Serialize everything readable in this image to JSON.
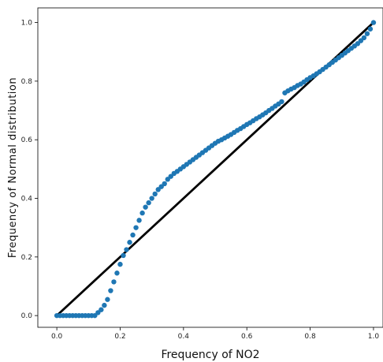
{
  "chart_data": {
    "type": "scatter",
    "title": "",
    "xlabel": "Frequency of NO2",
    "ylabel": "Frequency of Normal distribution",
    "xlim": [
      -0.06,
      1.03
    ],
    "ylim": [
      -0.04,
      1.05
    ],
    "xticks": [
      "0.0",
      "0.2",
      "0.4",
      "0.6",
      "0.8",
      "1.0"
    ],
    "yticks": [
      "0.0",
      "0.2",
      "0.4",
      "0.6",
      "0.8",
      "1.0"
    ],
    "grid": false,
    "legend": "none",
    "series": [
      {
        "kind": "scatter",
        "color": "#1f77b4",
        "points": [
          [
            0.0,
            0.0
          ],
          [
            0.01,
            0.0
          ],
          [
            0.02,
            0.0
          ],
          [
            0.03,
            0.0
          ],
          [
            0.04,
            0.0
          ],
          [
            0.05,
            0.0
          ],
          [
            0.06,
            0.0
          ],
          [
            0.07,
            0.0
          ],
          [
            0.08,
            0.0
          ],
          [
            0.09,
            0.0
          ],
          [
            0.1,
            0.0
          ],
          [
            0.11,
            0.0
          ],
          [
            0.12,
            0.0
          ],
          [
            0.13,
            0.01
          ],
          [
            0.14,
            0.02
          ],
          [
            0.15,
            0.035
          ],
          [
            0.16,
            0.055
          ],
          [
            0.17,
            0.085
          ],
          [
            0.18,
            0.115
          ],
          [
            0.19,
            0.145
          ],
          [
            0.2,
            0.175
          ],
          [
            0.21,
            0.205
          ],
          [
            0.22,
            0.225
          ],
          [
            0.23,
            0.25
          ],
          [
            0.24,
            0.275
          ],
          [
            0.25,
            0.3
          ],
          [
            0.26,
            0.325
          ],
          [
            0.27,
            0.35
          ],
          [
            0.28,
            0.37
          ],
          [
            0.29,
            0.385
          ],
          [
            0.3,
            0.4
          ],
          [
            0.31,
            0.415
          ],
          [
            0.32,
            0.43
          ],
          [
            0.33,
            0.44
          ],
          [
            0.34,
            0.45
          ],
          [
            0.35,
            0.465
          ],
          [
            0.36,
            0.475
          ],
          [
            0.37,
            0.485
          ],
          [
            0.38,
            0.492
          ],
          [
            0.39,
            0.5
          ],
          [
            0.4,
            0.508
          ],
          [
            0.41,
            0.516
          ],
          [
            0.42,
            0.524
          ],
          [
            0.43,
            0.532
          ],
          [
            0.44,
            0.54
          ],
          [
            0.45,
            0.548
          ],
          [
            0.46,
            0.556
          ],
          [
            0.47,
            0.564
          ],
          [
            0.48,
            0.572
          ],
          [
            0.49,
            0.58
          ],
          [
            0.5,
            0.588
          ],
          [
            0.51,
            0.595
          ],
          [
            0.52,
            0.6
          ],
          [
            0.53,
            0.606
          ],
          [
            0.54,
            0.612
          ],
          [
            0.55,
            0.618
          ],
          [
            0.56,
            0.625
          ],
          [
            0.57,
            0.632
          ],
          [
            0.58,
            0.638
          ],
          [
            0.59,
            0.645
          ],
          [
            0.6,
            0.652
          ],
          [
            0.61,
            0.658
          ],
          [
            0.62,
            0.665
          ],
          [
            0.63,
            0.672
          ],
          [
            0.64,
            0.678
          ],
          [
            0.65,
            0.685
          ],
          [
            0.66,
            0.692
          ],
          [
            0.67,
            0.7
          ],
          [
            0.68,
            0.707
          ],
          [
            0.69,
            0.715
          ],
          [
            0.7,
            0.722
          ],
          [
            0.71,
            0.73
          ],
          [
            0.72,
            0.76
          ],
          [
            0.73,
            0.767
          ],
          [
            0.74,
            0.773
          ],
          [
            0.75,
            0.778
          ],
          [
            0.76,
            0.785
          ],
          [
            0.77,
            0.79
          ],
          [
            0.78,
            0.797
          ],
          [
            0.79,
            0.805
          ],
          [
            0.8,
            0.812
          ],
          [
            0.81,
            0.818
          ],
          [
            0.82,
            0.825
          ],
          [
            0.83,
            0.832
          ],
          [
            0.84,
            0.84
          ],
          [
            0.85,
            0.848
          ],
          [
            0.86,
            0.856
          ],
          [
            0.87,
            0.864
          ],
          [
            0.88,
            0.872
          ],
          [
            0.89,
            0.88
          ],
          [
            0.9,
            0.888
          ],
          [
            0.91,
            0.896
          ],
          [
            0.92,
            0.904
          ],
          [
            0.93,
            0.912
          ],
          [
            0.94,
            0.92
          ],
          [
            0.95,
            0.928
          ],
          [
            0.96,
            0.938
          ],
          [
            0.97,
            0.948
          ],
          [
            0.98,
            0.962
          ],
          [
            0.99,
            0.978
          ],
          [
            1.0,
            1.0
          ]
        ]
      },
      {
        "kind": "line",
        "color": "#000000",
        "points": [
          [
            0.0,
            0.0
          ],
          [
            1.0,
            1.0
          ]
        ]
      }
    ]
  }
}
